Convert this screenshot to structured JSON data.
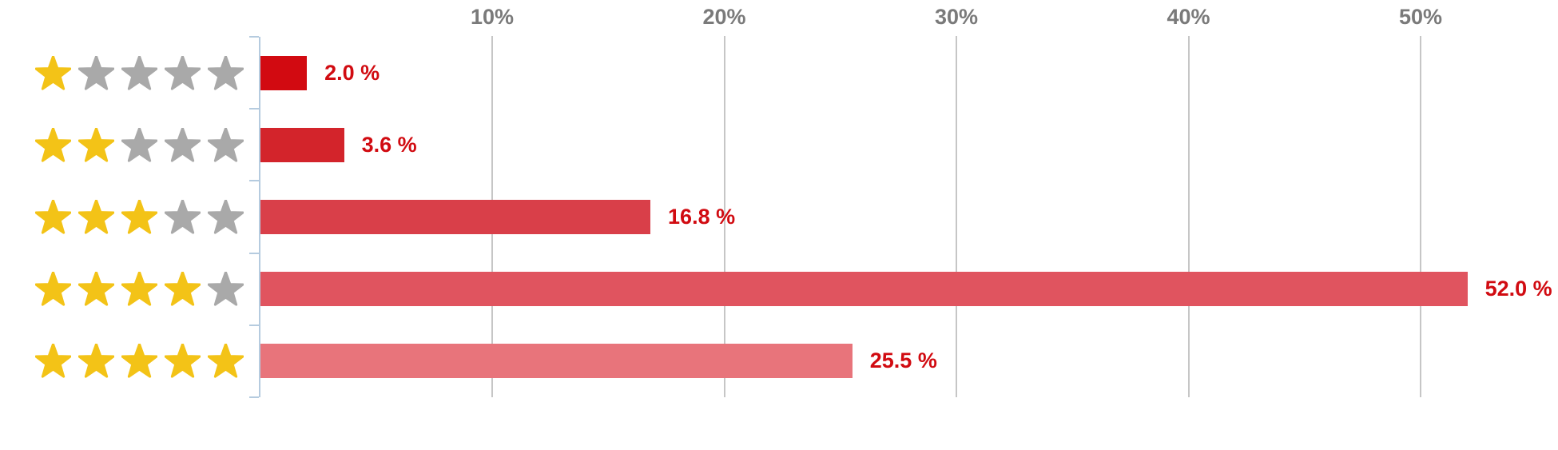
{
  "chart_data": {
    "type": "bar",
    "orientation": "horizontal",
    "title": "",
    "categories": [
      "1 star",
      "2 stars",
      "3 stars",
      "4 stars",
      "5 stars"
    ],
    "values": [
      2.0,
      3.6,
      16.8,
      52.0,
      25.5
    ],
    "value_labels": [
      "2.0 %",
      "3.6 %",
      "16.8 %",
      "52.0 %",
      "25.5 %"
    ],
    "stars": {
      "total": 5,
      "filled": [
        1,
        2,
        3,
        4,
        5
      ]
    },
    "x_axis": {
      "tick_values": [
        10,
        20,
        30,
        40,
        50
      ],
      "tick_labels": [
        "10%",
        "20%",
        "30%",
        "40%",
        "50%"
      ],
      "range": [
        0,
        56
      ],
      "grid": true,
      "tick_label_position": "top"
    },
    "legend": false,
    "colors": {
      "bars": [
        "#d20a11",
        "#d3242b",
        "#d93f49",
        "#e0545f",
        "#e8747b"
      ],
      "value_label": "#d10b11",
      "tick_label": "#7a7a7a",
      "gridline": "#c6c6c6",
      "axis": "#b5cbdf",
      "star_filled": "#f3c317",
      "star_empty": "#a9a9a9"
    }
  }
}
